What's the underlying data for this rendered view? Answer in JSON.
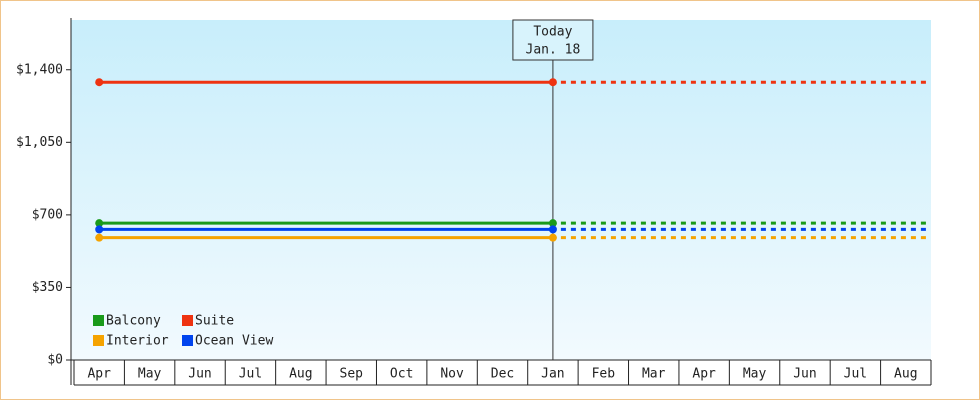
{
  "chart_data": {
    "type": "line",
    "categories": [
      "Apr",
      "May",
      "Jun",
      "Jul",
      "Aug",
      "Sep",
      "Oct",
      "Nov",
      "Dec",
      "Jan",
      "Feb",
      "Mar",
      "Apr",
      "May",
      "Jun",
      "Jul",
      "Aug"
    ],
    "series": [
      {
        "name": "Balcony",
        "color": "#1a9a1a",
        "values": [
          660,
          660,
          660,
          660,
          660,
          660,
          660,
          660,
          660,
          660,
          null,
          null,
          null,
          null,
          null,
          null,
          null
        ]
      },
      {
        "name": "Suite",
        "color": "#ee3311",
        "values": [
          1340,
          1340,
          1340,
          1340,
          1340,
          1340,
          1340,
          1340,
          1340,
          1340,
          null,
          null,
          null,
          null,
          null,
          null,
          null
        ]
      },
      {
        "name": "Interior",
        "color": "#f5a300",
        "values": [
          590,
          590,
          590,
          590,
          590,
          590,
          590,
          590,
          590,
          590,
          null,
          null,
          null,
          null,
          null,
          null,
          null
        ]
      },
      {
        "name": "Ocean View",
        "color": "#0044ee",
        "values": [
          630,
          630,
          630,
          630,
          630,
          630,
          630,
          630,
          630,
          630,
          null,
          null,
          null,
          null,
          null,
          null,
          null
        ]
      }
    ],
    "annotation": {
      "lines": [
        "Today",
        "Jan. 18"
      ]
    },
    "ylim": [
      0,
      1640
    ],
    "yticks": [
      0,
      {
        "value": 350,
        "label": "$350"
      },
      {
        "value": 700,
        "label": "$700"
      },
      {
        "value": 1050,
        "label": "$1,050"
      },
      {
        "value": 1400,
        "label": "$1,400"
      }
    ],
    "zero_label": "$0"
  }
}
